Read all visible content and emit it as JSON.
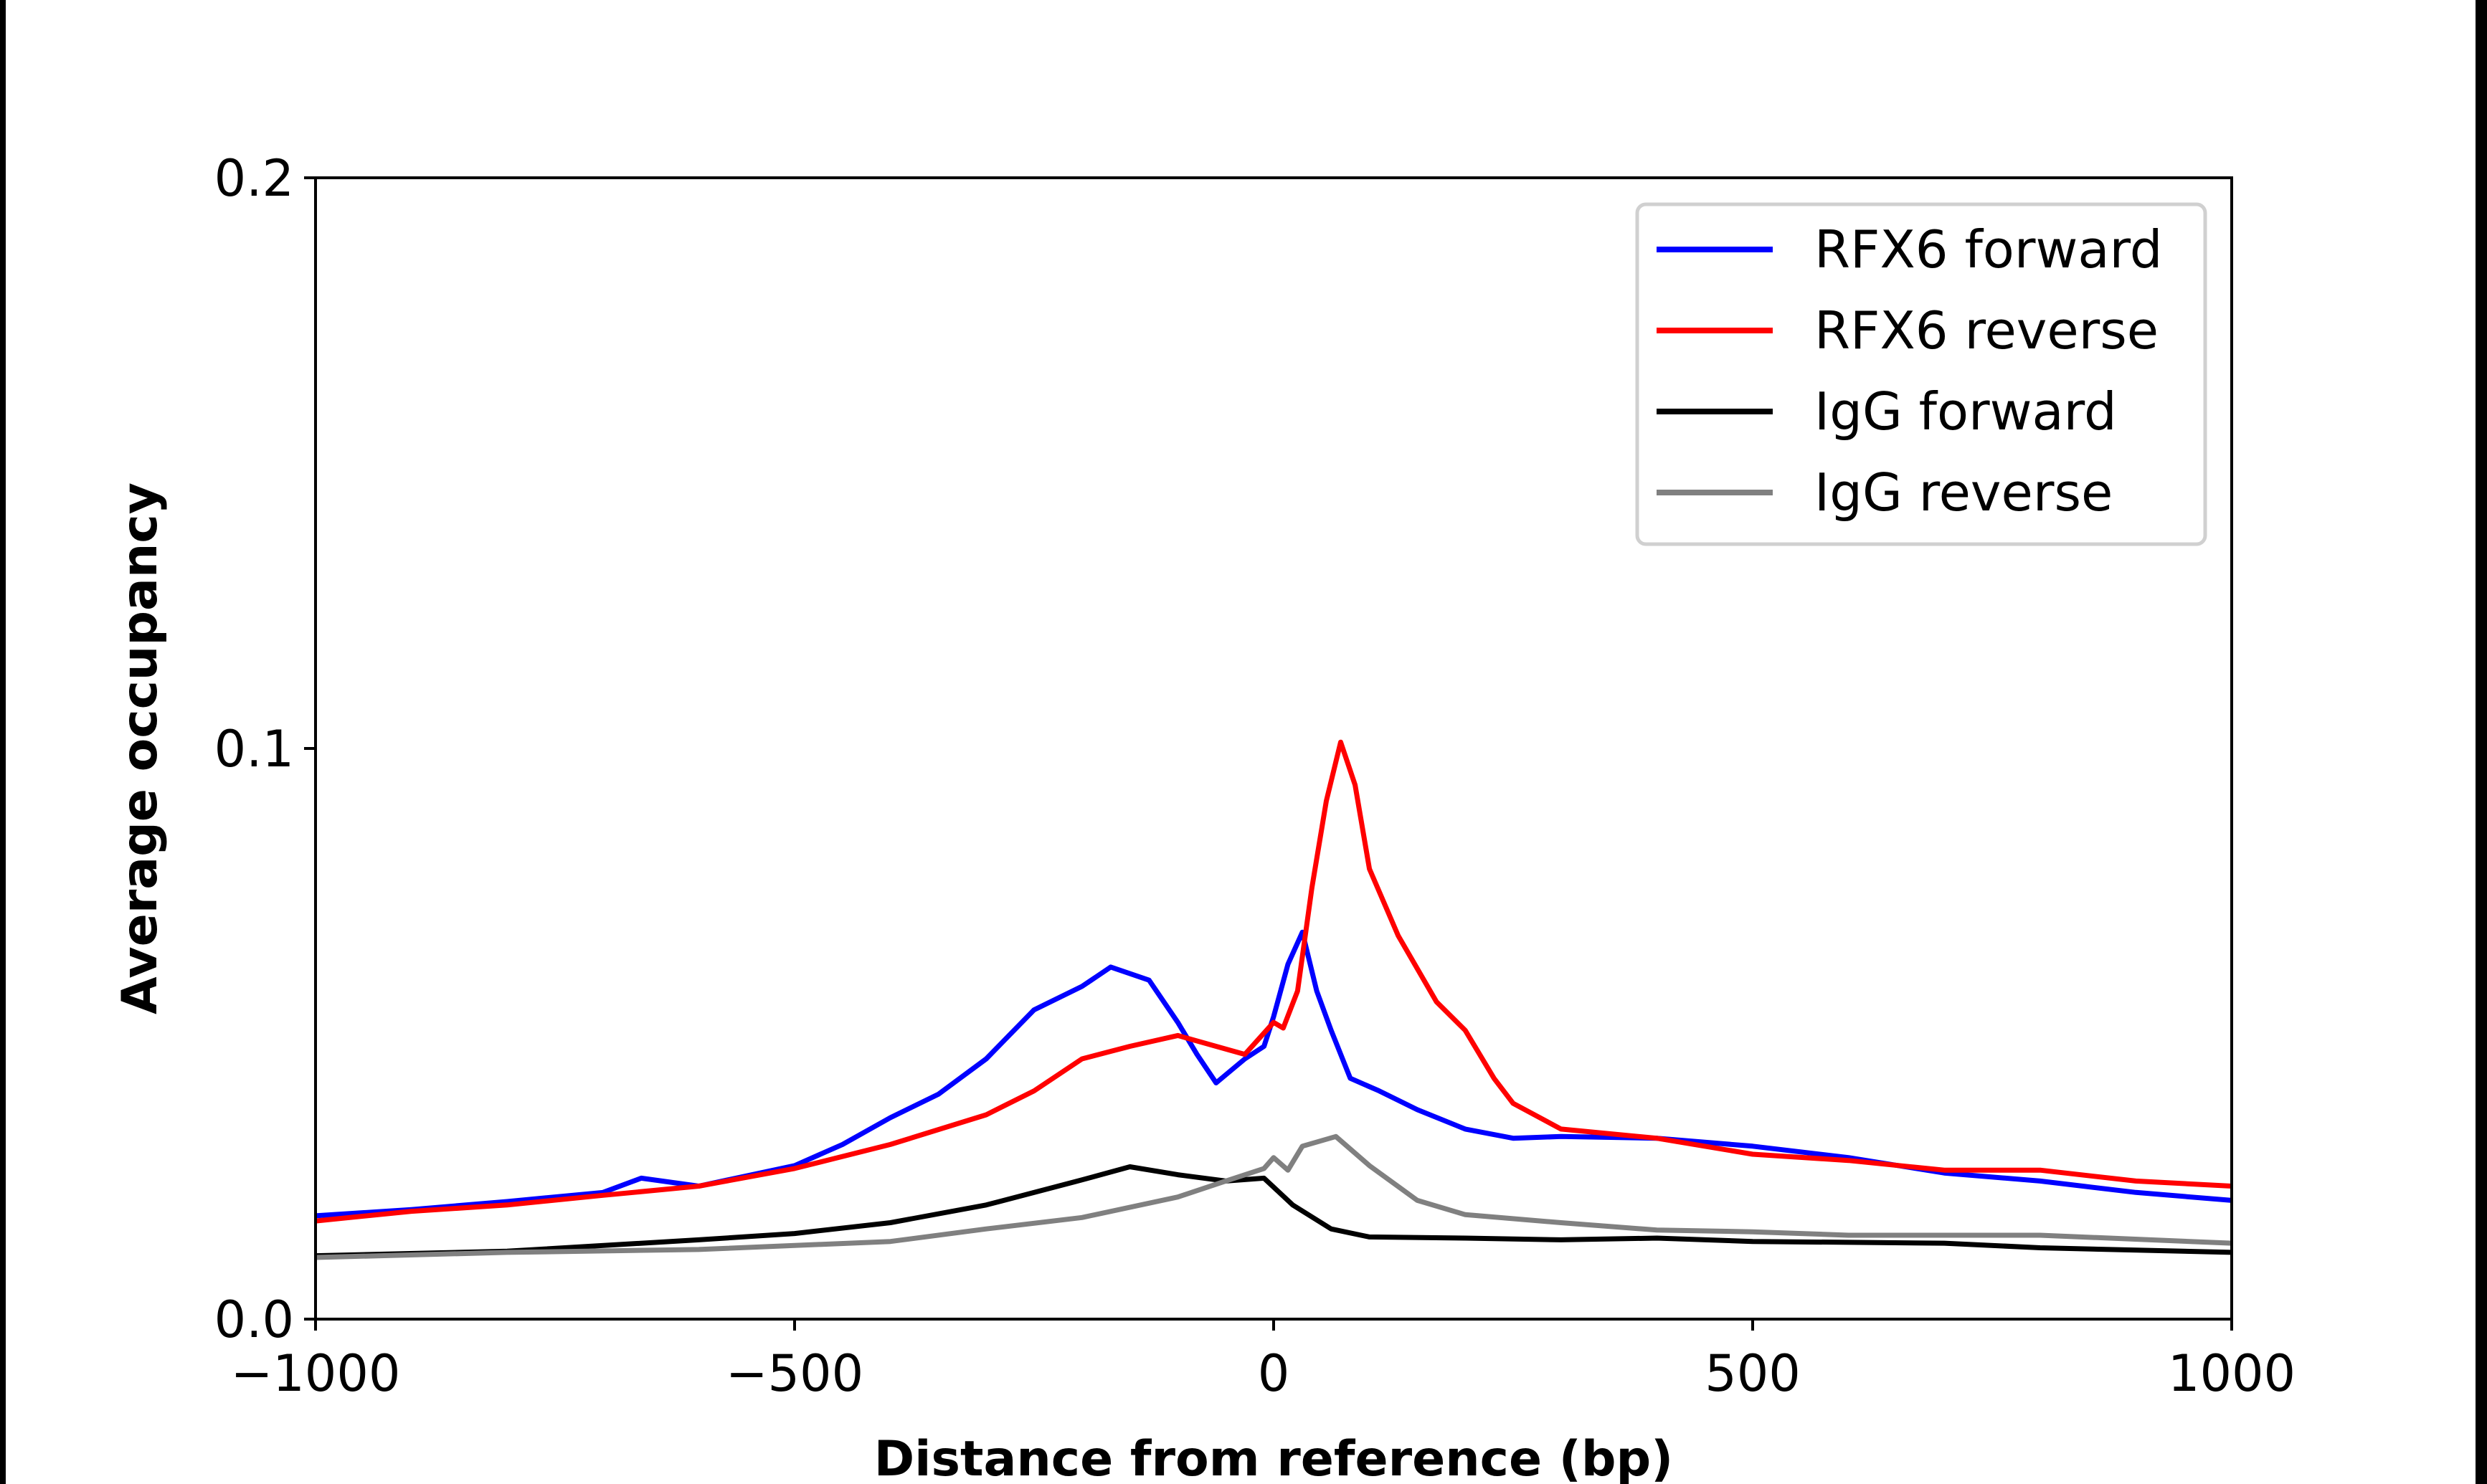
{
  "chart_data": {
    "type": "line",
    "xlabel": "Distance from reference (bp)",
    "ylabel": "Average occupancy",
    "xlim": [
      -1000,
      1000
    ],
    "ylim": [
      0.0,
      0.2
    ],
    "xticks": [
      -1000,
      -500,
      0,
      500,
      1000
    ],
    "xtick_labels": [
      "−1000",
      "−500",
      "0",
      "500",
      "1000"
    ],
    "yticks": [
      0.0,
      0.1,
      0.2
    ],
    "ytick_labels": [
      "0.0",
      "0.1",
      "0.2"
    ],
    "grid": false,
    "legend_position": "top-right",
    "series": [
      {
        "name": "RFX6 forward",
        "color": "#0000ff",
        "x": [
          -1000,
          -900,
          -800,
          -700,
          -660,
          -600,
          -500,
          -450,
          -400,
          -350,
          -300,
          -250,
          -200,
          -170,
          -130,
          -100,
          -80,
          -60,
          -30,
          -10,
          0,
          15,
          30,
          45,
          60,
          80,
          110,
          150,
          200,
          250,
          300,
          400,
          500,
          600,
          700,
          800,
          900,
          1000
        ],
        "y": [
          0.0181,
          0.0192,
          0.0206,
          0.0222,
          0.0247,
          0.0233,
          0.0269,
          0.0306,
          0.0353,
          0.0394,
          0.0456,
          0.0542,
          0.0583,
          0.0617,
          0.0594,
          0.052,
          0.0464,
          0.0414,
          0.0456,
          0.0478,
          0.053,
          0.0622,
          0.0678,
          0.0575,
          0.0506,
          0.0422,
          0.04,
          0.0367,
          0.0333,
          0.0317,
          0.032,
          0.0317,
          0.0303,
          0.0283,
          0.0256,
          0.0242,
          0.0222,
          0.0208
        ]
      },
      {
        "name": "RFX6 reverse",
        "color": "#ff0000",
        "x": [
          -1000,
          -900,
          -800,
          -700,
          -600,
          -500,
          -400,
          -300,
          -250,
          -200,
          -150,
          -100,
          -60,
          -30,
          0,
          10,
          25,
          40,
          55,
          70,
          85,
          100,
          130,
          170,
          200,
          230,
          250,
          300,
          400,
          500,
          600,
          700,
          800,
          900,
          1000
        ],
        "y": [
          0.0172,
          0.0189,
          0.02,
          0.0217,
          0.0233,
          0.0264,
          0.0306,
          0.0358,
          0.04,
          0.0456,
          0.0478,
          0.0497,
          0.0478,
          0.0464,
          0.052,
          0.051,
          0.0575,
          0.0756,
          0.0908,
          0.1011,
          0.0936,
          0.0789,
          0.0672,
          0.0556,
          0.0506,
          0.0422,
          0.0378,
          0.0333,
          0.0317,
          0.0289,
          0.0278,
          0.0261,
          0.0261,
          0.0242,
          0.0233
        ]
      },
      {
        "name": "IgG forward",
        "color": "#000000",
        "x": [
          -1000,
          -800,
          -600,
          -500,
          -400,
          -300,
          -200,
          -150,
          -100,
          -50,
          -10,
          20,
          60,
          100,
          200,
          300,
          400,
          500,
          700,
          800,
          1000
        ],
        "y": [
          0.0111,
          0.0119,
          0.0139,
          0.015,
          0.0169,
          0.02,
          0.0244,
          0.0267,
          0.0253,
          0.0242,
          0.0247,
          0.02,
          0.0158,
          0.0144,
          0.0142,
          0.0139,
          0.0142,
          0.0136,
          0.0133,
          0.0125,
          0.0117
        ]
      },
      {
        "name": "IgG reverse",
        "color": "#808080",
        "x": [
          -1000,
          -800,
          -600,
          -400,
          -300,
          -200,
          -100,
          -50,
          -10,
          0,
          15,
          30,
          65,
          100,
          150,
          200,
          300,
          400,
          500,
          600,
          800,
          1000
        ],
        "y": [
          0.0108,
          0.0117,
          0.0122,
          0.0136,
          0.0158,
          0.0178,
          0.0214,
          0.0242,
          0.0264,
          0.0283,
          0.0261,
          0.0303,
          0.032,
          0.0269,
          0.0208,
          0.0183,
          0.0169,
          0.0156,
          0.0153,
          0.0147,
          0.0147,
          0.0133
        ]
      }
    ]
  }
}
